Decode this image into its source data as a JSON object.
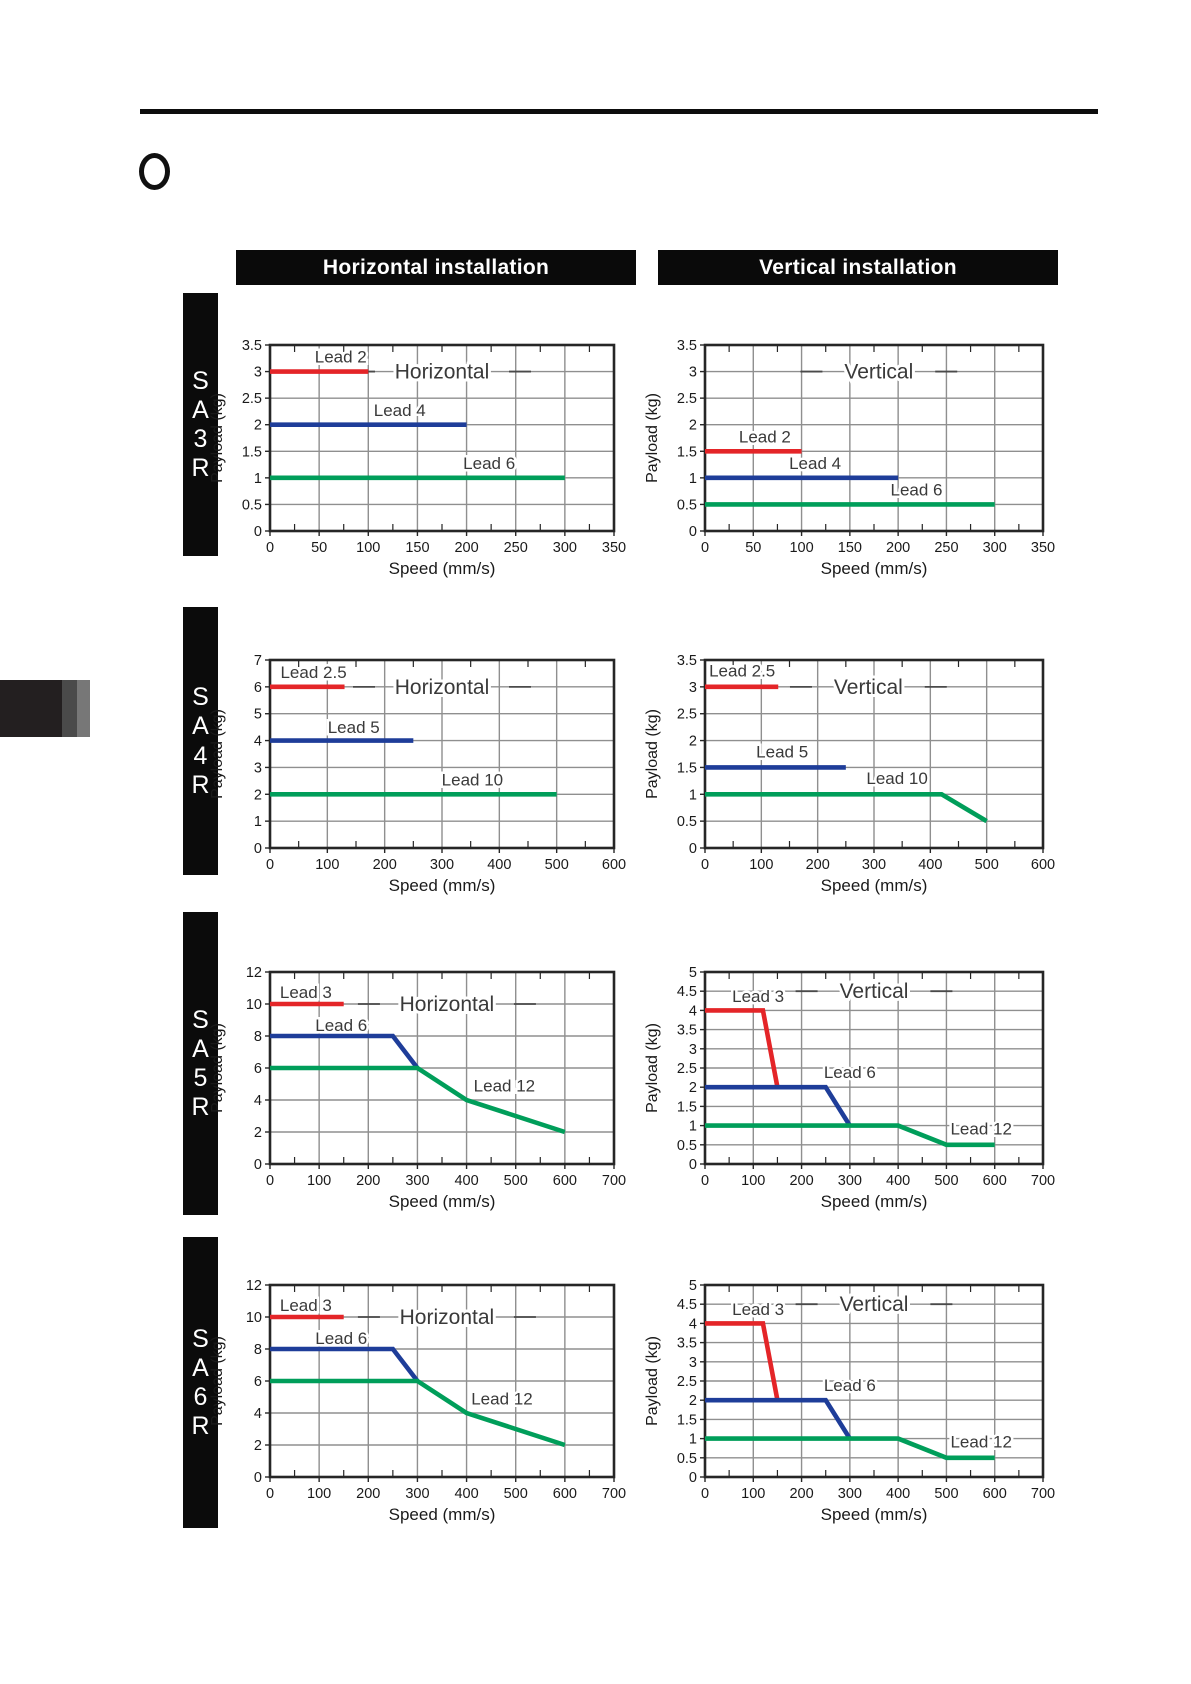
{
  "headers": {
    "horizontal": "Horizontal installation",
    "vertical": "Vertical installation"
  },
  "rows": [
    {
      "model": "SA3R"
    },
    {
      "model": "SA4R"
    },
    {
      "model": "SA5R"
    },
    {
      "model": "SA6R"
    }
  ],
  "colors": {
    "red": "#e42528",
    "blue": "#1e3d99",
    "green": "#009e5a",
    "grid": "#8f8f8f",
    "frame": "#262626",
    "label_text": "#3a3a3a",
    "tick_text": "#1a1a1a",
    "bar_bg": "#0a0a0a"
  },
  "chart_data": [
    {
      "id": "sa3r-horizontal",
      "row": 0,
      "column": "horizontal",
      "type": "line",
      "title": "Horizontal",
      "xlabel": "Speed (mm/s)",
      "ylabel": "Payload (kg)",
      "xlim": [
        0,
        350
      ],
      "ylim": [
        0,
        3.5
      ],
      "xtick_step": 50,
      "ytick_step": 0.5,
      "grid": true,
      "title_pos": {
        "x": 175,
        "y": 3
      },
      "series": [
        {
          "name": "Lead 2",
          "color": "red",
          "points": [
            [
              0,
              3
            ],
            [
              100,
              3
            ]
          ],
          "label_pos": {
            "x": 72,
            "y": 3.28
          }
        },
        {
          "name": "Lead 4",
          "color": "blue",
          "points": [
            [
              0,
              2
            ],
            [
              200,
              2
            ]
          ],
          "label_pos": {
            "x": 132,
            "y": 2.28
          }
        },
        {
          "name": "Lead 6",
          "color": "green",
          "points": [
            [
              0,
              1
            ],
            [
              300,
              1
            ]
          ],
          "label_pos": {
            "x": 223,
            "y": 1.28
          }
        }
      ]
    },
    {
      "id": "sa3r-vertical",
      "row": 0,
      "column": "vertical",
      "type": "line",
      "title": "Vertical",
      "xlabel": "Speed (mm/s)",
      "ylabel": "Payload (kg)",
      "xlim": [
        0,
        350
      ],
      "ylim": [
        0,
        3.5
      ],
      "xtick_step": 50,
      "ytick_step": 0.5,
      "grid": true,
      "title_pos": {
        "x": 180,
        "y": 3
      },
      "series": [
        {
          "name": "Lead 2",
          "color": "red",
          "points": [
            [
              0,
              1.5
            ],
            [
              100,
              1.5
            ]
          ],
          "label_pos": {
            "x": 62,
            "y": 1.78
          }
        },
        {
          "name": "Lead 4",
          "color": "blue",
          "points": [
            [
              0,
              1
            ],
            [
              200,
              1
            ]
          ],
          "label_pos": {
            "x": 114,
            "y": 1.28
          }
        },
        {
          "name": "Lead 6",
          "color": "green",
          "points": [
            [
              0,
              0.5
            ],
            [
              300,
              0.5
            ]
          ],
          "label_pos": {
            "x": 219,
            "y": 0.78
          }
        }
      ]
    },
    {
      "id": "sa4r-horizontal",
      "row": 1,
      "column": "horizontal",
      "type": "line",
      "title": "Horizontal",
      "xlabel": "Speed (mm/s)",
      "ylabel": "Payload (kg)",
      "xlim": [
        0,
        600
      ],
      "ylim": [
        0,
        7
      ],
      "xtick_step": 100,
      "ytick_step": 1,
      "grid": true,
      "title_pos": {
        "x": 300,
        "y": 6
      },
      "series": [
        {
          "name": "Lead 2.5",
          "color": "red",
          "points": [
            [
              0,
              6
            ],
            [
              130,
              6
            ]
          ],
          "label_pos": {
            "x": 76,
            "y": 6.55
          }
        },
        {
          "name": "Lead 5",
          "color": "blue",
          "points": [
            [
              0,
              4
            ],
            [
              250,
              4
            ]
          ],
          "label_pos": {
            "x": 146,
            "y": 4.5
          }
        },
        {
          "name": "Lead 10",
          "color": "green",
          "points": [
            [
              0,
              2
            ],
            [
              500,
              2
            ]
          ],
          "label_pos": {
            "x": 353,
            "y": 2.55
          }
        }
      ]
    },
    {
      "id": "sa4r-vertical",
      "row": 1,
      "column": "vertical",
      "type": "line",
      "title": "Vertical",
      "xlabel": "Speed (mm/s)",
      "ylabel": "Payload (kg)",
      "xlim": [
        0,
        600
      ],
      "ylim": [
        0,
        3.5
      ],
      "xtick_step": 100,
      "ytick_step": 0.5,
      "grid": true,
      "title_pos": {
        "x": 290,
        "y": 3
      },
      "series": [
        {
          "name": "Lead 2.5",
          "color": "red",
          "points": [
            [
              0,
              3
            ],
            [
              130,
              3
            ]
          ],
          "label_pos": {
            "x": 66,
            "y": 3.3
          }
        },
        {
          "name": "Lead 5",
          "color": "blue",
          "points": [
            [
              0,
              1.5
            ],
            [
              250,
              1.5
            ]
          ],
          "label_pos": {
            "x": 137,
            "y": 1.8
          }
        },
        {
          "name": "Lead 10",
          "color": "green",
          "points": [
            [
              0,
              1
            ],
            [
              420,
              1
            ],
            [
              500,
              0.5
            ]
          ],
          "label_pos": {
            "x": 341,
            "y": 1.3
          }
        }
      ]
    },
    {
      "id": "sa5r-horizontal",
      "row": 2,
      "column": "horizontal",
      "type": "line",
      "title": "Horizontal",
      "xlabel": "Speed (mm/s)",
      "ylabel": "Payload (kg)",
      "xlim": [
        0,
        700
      ],
      "ylim": [
        0,
        12
      ],
      "xtick_step": 100,
      "ytick_step": 2,
      "grid": true,
      "title_pos": {
        "x": 360,
        "y": 10
      },
      "series": [
        {
          "name": "Lead 3",
          "color": "red",
          "points": [
            [
              0,
              10
            ],
            [
              150,
              10
            ]
          ],
          "label_pos": {
            "x": 73,
            "y": 10.75
          }
        },
        {
          "name": "Lead 6",
          "color": "blue",
          "points": [
            [
              0,
              8
            ],
            [
              250,
              8
            ],
            [
              300,
              6
            ]
          ],
          "label_pos": {
            "x": 145,
            "y": 8.7
          }
        },
        {
          "name": "Lead 12",
          "color": "green",
          "points": [
            [
              0,
              6
            ],
            [
              300,
              6
            ],
            [
              400,
              4
            ],
            [
              600,
              2
            ]
          ],
          "label_pos": {
            "x": 477,
            "y": 4.9
          }
        }
      ]
    },
    {
      "id": "sa5r-vertical",
      "row": 2,
      "column": "vertical",
      "type": "line",
      "title": "Vertical",
      "xlabel": "Speed (mm/s)",
      "ylabel": "Payload (kg)",
      "xlim": [
        0,
        700
      ],
      "ylim": [
        0,
        5
      ],
      "xtick_step": 100,
      "ytick_step": 0.5,
      "grid": true,
      "title_pos": {
        "x": 350,
        "y": 4.5
      },
      "series": [
        {
          "name": "Lead 3",
          "color": "red",
          "points": [
            [
              0,
              4
            ],
            [
              120,
              4
            ],
            [
              150,
              2
            ]
          ],
          "label_pos": {
            "x": 110,
            "y": 4.38
          }
        },
        {
          "name": "Lead 6",
          "color": "blue",
          "points": [
            [
              0,
              2
            ],
            [
              250,
              2
            ],
            [
              300,
              1
            ]
          ],
          "label_pos": {
            "x": 300,
            "y": 2.4
          }
        },
        {
          "name": "Lead 12",
          "color": "green",
          "points": [
            [
              0,
              1
            ],
            [
              400,
              1
            ],
            [
              500,
              0.5
            ],
            [
              600,
              0.5
            ]
          ],
          "label_pos": {
            "x": 572,
            "y": 0.92
          }
        }
      ]
    },
    {
      "id": "sa6r-horizontal",
      "row": 3,
      "column": "horizontal",
      "type": "line",
      "title": "Horizontal",
      "xlabel": "Speed (mm/s)",
      "ylabel": "Payload (kg)",
      "xlim": [
        0,
        700
      ],
      "ylim": [
        0,
        12
      ],
      "xtick_step": 100,
      "ytick_step": 2,
      "grid": true,
      "title_pos": {
        "x": 360,
        "y": 10
      },
      "series": [
        {
          "name": "Lead 3",
          "color": "red",
          "points": [
            [
              0,
              10
            ],
            [
              150,
              10
            ]
          ],
          "label_pos": {
            "x": 73,
            "y": 10.75
          }
        },
        {
          "name": "Lead 6",
          "color": "blue",
          "points": [
            [
              0,
              8
            ],
            [
              250,
              8
            ],
            [
              300,
              6
            ]
          ],
          "label_pos": {
            "x": 145,
            "y": 8.7
          }
        },
        {
          "name": "Lead 12",
          "color": "green",
          "points": [
            [
              0,
              6
            ],
            [
              300,
              6
            ],
            [
              400,
              4
            ],
            [
              600,
              2
            ]
          ],
          "label_pos": {
            "x": 472,
            "y": 4.9
          }
        }
      ]
    },
    {
      "id": "sa6r-vertical",
      "row": 3,
      "column": "vertical",
      "type": "line",
      "title": "Vertical",
      "xlabel": "Speed (mm/s)",
      "ylabel": "Payload (kg)",
      "xlim": [
        0,
        700
      ],
      "ylim": [
        0,
        5
      ],
      "xtick_step": 100,
      "ytick_step": 0.5,
      "grid": true,
      "title_pos": {
        "x": 350,
        "y": 4.5
      },
      "series": [
        {
          "name": "Lead 3",
          "color": "red",
          "points": [
            [
              0,
              4
            ],
            [
              120,
              4
            ],
            [
              150,
              2
            ]
          ],
          "label_pos": {
            "x": 110,
            "y": 4.38
          }
        },
        {
          "name": "Lead 6",
          "color": "blue",
          "points": [
            [
              0,
              2
            ],
            [
              250,
              2
            ],
            [
              300,
              1
            ]
          ],
          "label_pos": {
            "x": 300,
            "y": 2.4
          }
        },
        {
          "name": "Lead 12",
          "color": "green",
          "points": [
            [
              0,
              1
            ],
            [
              400,
              1
            ],
            [
              500,
              0.5
            ],
            [
              600,
              0.5
            ]
          ],
          "label_pos": {
            "x": 572,
            "y": 0.92
          }
        }
      ]
    }
  ]
}
